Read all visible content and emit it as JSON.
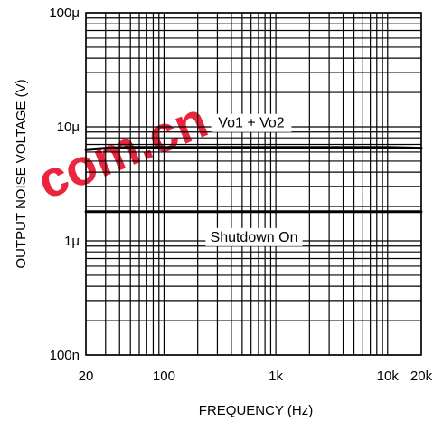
{
  "chart_data": {
    "type": "line",
    "xlabel": "FREQUENCY (Hz)",
    "ylabel": "OUTPUT NOISE VOLTAGE (V)",
    "x_scale": "log",
    "y_scale": "log",
    "xlim": [
      20,
      20000
    ],
    "ylim": [
      1e-07,
      0.0001
    ],
    "grid": true,
    "x_ticks": [
      {
        "value": 20,
        "label": "20"
      },
      {
        "value": 100,
        "label": "100"
      },
      {
        "value": 1000,
        "label": "1k"
      },
      {
        "value": 10000,
        "label": "10k"
      },
      {
        "value": 20000,
        "label": "20k"
      }
    ],
    "y_ticks": [
      {
        "value": 1e-07,
        "label": "100n"
      },
      {
        "value": 1e-06,
        "label": "1μ"
      },
      {
        "value": 1e-05,
        "label": "10μ"
      },
      {
        "value": 0.0001,
        "label": "100μ"
      }
    ],
    "series": [
      {
        "name": "Vo1 + Vo2",
        "x": [
          20,
          30,
          50,
          100,
          200,
          500,
          1000,
          2000,
          5000,
          10000,
          20000
        ],
        "y": [
          6.3e-06,
          6.5e-06,
          6.6e-06,
          6.6e-06,
          6.6e-06,
          6.6e-06,
          6.6e-06,
          6.6e-06,
          6.6e-06,
          6.6e-06,
          6.5e-06
        ]
      },
      {
        "name": "Shutdown On",
        "x": [
          20,
          30,
          50,
          100,
          200,
          500,
          1000,
          2000,
          5000,
          10000,
          20000
        ],
        "y": [
          1.8e-06,
          1.8e-06,
          1.8e-06,
          1.8e-06,
          1.8e-06,
          1.8e-06,
          1.8e-06,
          1.8e-06,
          1.8e-06,
          1.8e-06,
          1.8e-06
        ]
      }
    ],
    "annotations": [
      {
        "text": "Vo1 + Vo2",
        "series": 0
      },
      {
        "text": "Shutdown On",
        "series": 1
      }
    ]
  },
  "watermark": {
    "text": "com.cn",
    "color": "#e8001c",
    "faint_color": "#d9d9d9"
  }
}
